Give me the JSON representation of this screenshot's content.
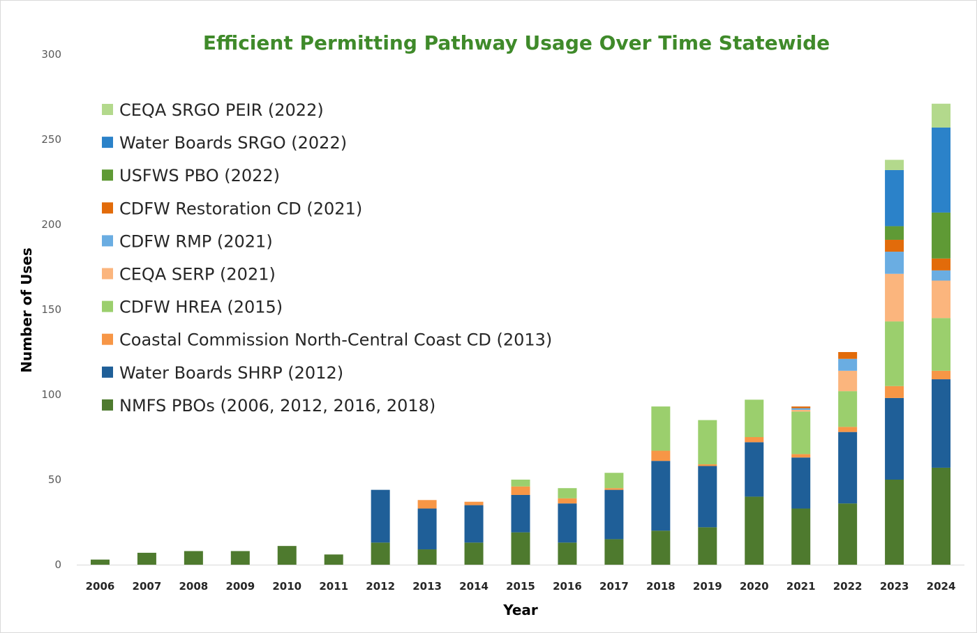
{
  "colors": {
    "title": "#3f8a2a",
    "axis_line": "#d9d9d9"
  },
  "chart_data": {
    "type": "bar",
    "stacked": true,
    "title": "Efficient Permitting Pathway Usage Over Time Statewide",
    "xlabel": "Year",
    "ylabel": "Number of Uses",
    "ylim": [
      0,
      300
    ],
    "yticks": [
      0,
      50,
      100,
      150,
      200,
      250,
      300
    ],
    "grid": false,
    "legend_position": "top-left",
    "categories": [
      "2006",
      "2007",
      "2008",
      "2009",
      "2010",
      "2011",
      "2012",
      "2013",
      "2014",
      "2015",
      "2016",
      "2017",
      "2018",
      "2019",
      "2020",
      "2021",
      "2022",
      "2023",
      "2024"
    ],
    "series": [
      {
        "name": "NMFS PBOs (2006, 2012, 2016, 2018)",
        "color": "#4e7a2e",
        "values": [
          3,
          7,
          8,
          8,
          11,
          6,
          13,
          9,
          13,
          19,
          13,
          15,
          20,
          22,
          40,
          33,
          36,
          50,
          57
        ]
      },
      {
        "name": "Water Boards SHRP (2012)",
        "color": "#1f5f98",
        "values": [
          0,
          0,
          0,
          0,
          0,
          0,
          31,
          24,
          22,
          22,
          23,
          29,
          41,
          36,
          32,
          30,
          42,
          48,
          52
        ]
      },
      {
        "name": "Coastal Commission North-Central Coast CD (2013)",
        "color": "#f79646",
        "values": [
          0,
          0,
          0,
          0,
          0,
          0,
          0,
          5,
          2,
          5,
          3,
          1,
          6,
          1,
          3,
          2,
          3,
          7,
          5
        ]
      },
      {
        "name": "CDFW HREA (2015)",
        "color": "#9bcf6d",
        "values": [
          0,
          0,
          0,
          0,
          0,
          0,
          0,
          0,
          0,
          4,
          6,
          9,
          26,
          26,
          22,
          25,
          21,
          38,
          31
        ]
      },
      {
        "name": "CEQA SERP (2021)",
        "color": "#fbb57d",
        "values": [
          0,
          0,
          0,
          0,
          0,
          0,
          0,
          0,
          0,
          0,
          0,
          0,
          0,
          0,
          0,
          1,
          12,
          28,
          22
        ]
      },
      {
        "name": "CDFW RMP (2021)",
        "color": "#6aade2",
        "values": [
          0,
          0,
          0,
          0,
          0,
          0,
          0,
          0,
          0,
          0,
          0,
          0,
          0,
          0,
          0,
          1,
          7,
          13,
          6
        ]
      },
      {
        "name": "CDFW Restoration CD (2021)",
        "color": "#e26b0a",
        "values": [
          0,
          0,
          0,
          0,
          0,
          0,
          0,
          0,
          0,
          0,
          0,
          0,
          0,
          0,
          0,
          1,
          4,
          7,
          7
        ]
      },
      {
        "name": "USFWS PBO (2022)",
        "color": "#5f9a35",
        "values": [
          0,
          0,
          0,
          0,
          0,
          0,
          0,
          0,
          0,
          0,
          0,
          0,
          0,
          0,
          0,
          0,
          0,
          8,
          27
        ]
      },
      {
        "name": "Water Boards SRGO (2022)",
        "color": "#2b82c9",
        "values": [
          0,
          0,
          0,
          0,
          0,
          0,
          0,
          0,
          0,
          0,
          0,
          0,
          0,
          0,
          0,
          0,
          0,
          33,
          50
        ]
      },
      {
        "name": "CEQA SRGO PEIR (2022)",
        "color": "#b3d98c",
        "values": [
          0,
          0,
          0,
          0,
          0,
          0,
          0,
          0,
          0,
          0,
          0,
          0,
          0,
          0,
          0,
          0,
          0,
          6,
          14
        ]
      }
    ]
  }
}
